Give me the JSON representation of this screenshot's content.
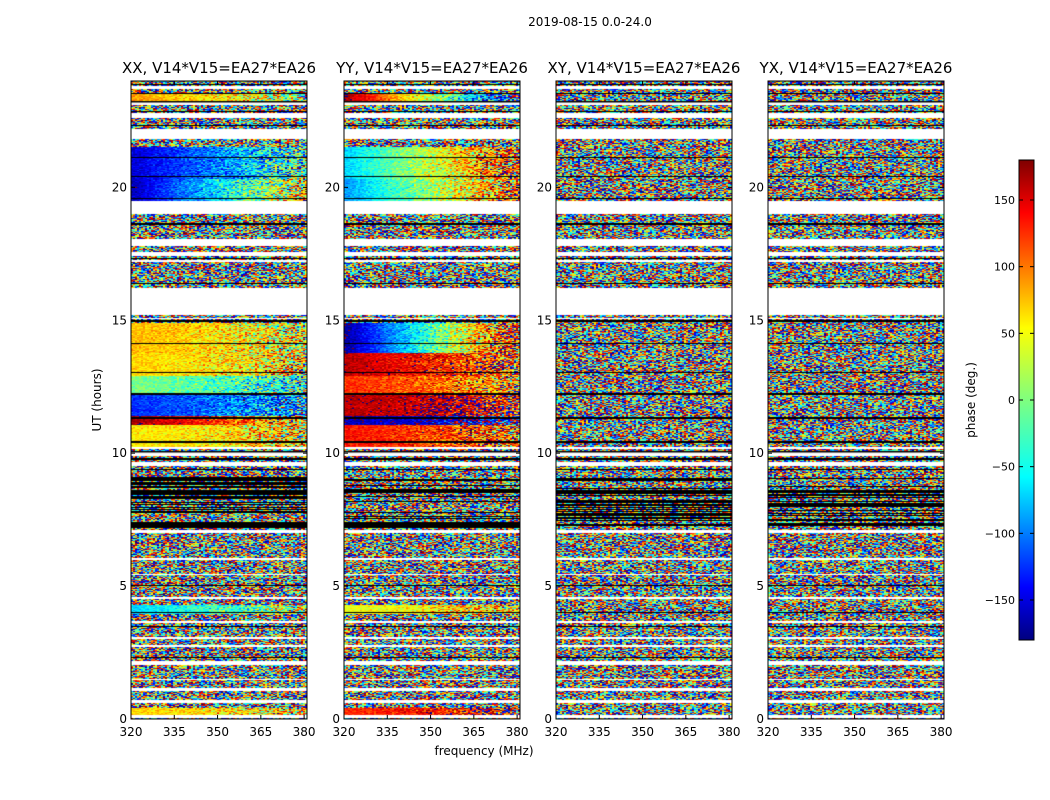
{
  "figure": {
    "suptitle": "2019-08-15 0.0-24.0"
  },
  "chart_data": {
    "type": "heatmap",
    "xlabel": "frequency (MHz)",
    "ylabel": "UT (hours)",
    "xlim": [
      320,
      381
    ],
    "ylim": [
      0,
      24
    ],
    "xticks": [
      320,
      335,
      350,
      365,
      380
    ],
    "yticks": [
      0,
      5,
      10,
      15,
      20
    ],
    "colorbar": {
      "label": "phase (deg.)",
      "range": [
        -180,
        180
      ],
      "ticks": [
        -150,
        -100,
        -50,
        0,
        50,
        100,
        150
      ],
      "colormap": "jet",
      "colors": [
        "#00007f",
        "#0000ff",
        "#007fff",
        "#00ffff",
        "#7fff7f",
        "#ffff00",
        "#ff7f00",
        "#ff0000",
        "#7f0000"
      ]
    },
    "time_ranges_hours": {
      "empty_gaps": [
        [
          0.04,
          0.16
        ],
        [
          0.62,
          0.72
        ],
        [
          1.05,
          1.15
        ],
        [
          1.45,
          1.52
        ],
        [
          2.05,
          2.2
        ],
        [
          2.7,
          2.8
        ],
        [
          3.0,
          3.08
        ],
        [
          3.6,
          3.68
        ],
        [
          4.5,
          4.58
        ],
        [
          5.4,
          5.46
        ],
        [
          6.0,
          6.06
        ],
        [
          7.0,
          7.1
        ],
        [
          9.5,
          9.65
        ],
        [
          9.9,
          10.05
        ],
        [
          10.15,
          10.25
        ],
        [
          15.05,
          15.1
        ],
        [
          15.2,
          16.2
        ],
        [
          17.2,
          17.25
        ],
        [
          17.4,
          17.55
        ],
        [
          17.8,
          18.05
        ],
        [
          19.0,
          19.5
        ],
        [
          21.8,
          22.2
        ],
        [
          22.6,
          22.8
        ],
        [
          23.1,
          23.2
        ],
        [
          23.7,
          23.8
        ]
      ],
      "black_dense_region": [
        7.2,
        9.1
      ],
      "dark_lines": [
        [
          0.1,
          0.14
        ],
        [
          0.7,
          0.72
        ],
        [
          1.1,
          1.14
        ],
        [
          2.1,
          2.16
        ],
        [
          2.3,
          2.34
        ],
        [
          2.75,
          2.8
        ],
        [
          3.45,
          3.48
        ],
        [
          4.0,
          4.04
        ],
        [
          4.5,
          4.54
        ],
        [
          5.0,
          5.03
        ],
        [
          7.25,
          7.32
        ],
        [
          9.35,
          9.4
        ],
        [
          9.75,
          9.82
        ],
        [
          10.05,
          10.1
        ],
        [
          10.4,
          10.45
        ],
        [
          11.3,
          11.35
        ],
        [
          12.2,
          12.25
        ],
        [
          13.0,
          13.05
        ],
        [
          14.1,
          14.15
        ],
        [
          14.95,
          15.0
        ],
        [
          16.35,
          16.4
        ],
        [
          17.3,
          17.34
        ],
        [
          18.6,
          18.64
        ],
        [
          19.55,
          19.6
        ],
        [
          20.4,
          20.43
        ],
        [
          21.1,
          21.13
        ],
        [
          22.3,
          22.34
        ],
        [
          22.85,
          22.88
        ],
        [
          23.2,
          23.24
        ],
        [
          23.5,
          23.53
        ],
        [
          23.85,
          23.9
        ]
      ]
    },
    "panels": [
      {
        "title": "XX, V14*V15=EA27*EA26",
        "structured_bands": [
          {
            "t": [
              23.15,
              23.55
            ],
            "phase": [
              80,
              20
            ]
          },
          {
            "t": [
              20.3,
              21.5
            ],
            "phase": [
              -150,
              -20
            ]
          },
          {
            "t": [
              19.5,
              20.3
            ],
            "phase": [
              -160,
              60
            ]
          },
          {
            "t": [
              13.75,
              14.9
            ],
            "phase": [
              70,
              40
            ]
          },
          {
            "t": [
              12.9,
              13.75
            ],
            "phase": [
              60,
              50
            ]
          },
          {
            "t": [
              12.2,
              12.9
            ],
            "phase": [
              0,
              -40
            ]
          },
          {
            "t": [
              11.4,
              12.2
            ],
            "phase": [
              -120,
              -70
            ]
          },
          {
            "t": [
              11.05,
              11.4
            ],
            "phase": [
              170,
              60
            ]
          },
          {
            "t": [
              10.25,
              11.05
            ],
            "phase": [
              50,
              60
            ]
          },
          {
            "t": [
              3.95,
              4.3
            ],
            "phase": [
              -60,
              20
            ]
          },
          {
            "t": [
              0.16,
              0.4
            ],
            "phase": [
              60,
              50
            ]
          }
        ]
      },
      {
        "title": "YY, V14*V15=EA27*EA26",
        "structured_bands": [
          {
            "t": [
              23.15,
              23.55
            ],
            "phase": [
              170,
              -140
            ]
          },
          {
            "t": [
              20.3,
              21.5
            ],
            "phase": [
              -60,
              120
            ]
          },
          {
            "t": [
              19.5,
              20.3
            ],
            "phase": [
              -80,
              110
            ]
          },
          {
            "t": [
              13.75,
              14.9
            ],
            "phase": [
              -170,
              140
            ]
          },
          {
            "t": [
              12.9,
              13.75
            ],
            "phase": [
              160,
              100
            ]
          },
          {
            "t": [
              12.2,
              12.9
            ],
            "phase": [
              120,
              80
            ]
          },
          {
            "t": [
              11.4,
              12.2
            ],
            "phase": [
              160,
              150
            ]
          },
          {
            "t": [
              11.05,
              11.4
            ],
            "phase": [
              -160,
              -140
            ]
          },
          {
            "t": [
              10.25,
              11.05
            ],
            "phase": [
              130,
              100
            ]
          },
          {
            "t": [
              3.95,
              4.3
            ],
            "phase": [
              40,
              60
            ]
          },
          {
            "t": [
              0.16,
              0.4
            ],
            "phase": [
              120,
              150
            ]
          }
        ]
      },
      {
        "title": "XY, V14*V15=EA27*EA26",
        "structured_bands": []
      },
      {
        "title": "YX, V14*V15=EA27*EA26",
        "structured_bands": []
      }
    ]
  }
}
